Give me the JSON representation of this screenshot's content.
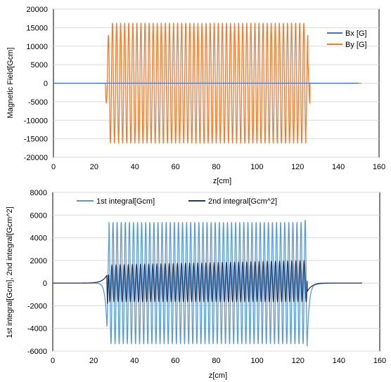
{
  "chart_data": [
    {
      "type": "line",
      "xlabel": "z[cm]",
      "ylabel": "Magnetic Field[Gcm]",
      "xlim": [
        0,
        160
      ],
      "ylim": [
        -20000,
        20000
      ],
      "x_ticks": [
        "0",
        "20",
        "40",
        "60",
        "80",
        "100",
        "120",
        "140",
        "160"
      ],
      "y_ticks": [
        "20000",
        "15000",
        "10000",
        "5000",
        "0",
        "-5000",
        "-10000",
        "-15000",
        "-20000"
      ],
      "grid": "horizontal",
      "legend_position": "top-right",
      "series": [
        {
          "name": "Bx [G]",
          "color": "#4472c4",
          "x": [
            0,
            150
          ],
          "y": [
            0,
            0
          ]
        },
        {
          "name": "By [G]",
          "color": "#ed7d31",
          "z_start": 0,
          "z_end": 151.4,
          "oscillation_start": 25.5,
          "oscillation_end": 126.0,
          "period": 2.0,
          "peak_amplitude": 16200,
          "end_peaks": [
            -5200,
            12800,
            -16000,
            -16000,
            13000,
            5300
          ]
        }
      ]
    },
    {
      "type": "line",
      "xlabel": "z[cm]",
      "ylabel": "1st integral[Gcm], 2nd integral[Gcm^2]",
      "xlim": [
        0,
        160
      ],
      "ylim": [
        -6000,
        8000
      ],
      "x_ticks": [
        "0",
        "20",
        "40",
        "60",
        "80",
        "100",
        "120",
        "140",
        "160"
      ],
      "y_ticks": [
        "8000",
        "6000",
        "4000",
        "2000",
        "0",
        "-2000",
        "-4000",
        "-6000"
      ],
      "grid": "horizontal",
      "legend_position": "top",
      "series": [
        {
          "name": "1st integral[Gcm]",
          "color": "#5b9bd5",
          "z_start": 0,
          "z_end": 151.4,
          "oscillation_start": 26.5,
          "oscillation_end": 124.5,
          "period": 2.0,
          "peak_amplitude": 5350,
          "end_peaks": [
            -3800,
            5550,
            -5300,
            5550,
            -5350
          ]
        },
        {
          "name": "2nd integral[Gcm^2]",
          "color": "#203864",
          "z_start": 0,
          "z_end": 151.4,
          "oscillation_start": 26.5,
          "oscillation_end": 124.5,
          "period": 2.0,
          "upper_peak_start": 1600,
          "upper_peak_end": 2000,
          "lower_peak": -1650,
          "end_peaks": [
            700,
            -2500,
            1700,
            -750
          ]
        }
      ]
    }
  ]
}
